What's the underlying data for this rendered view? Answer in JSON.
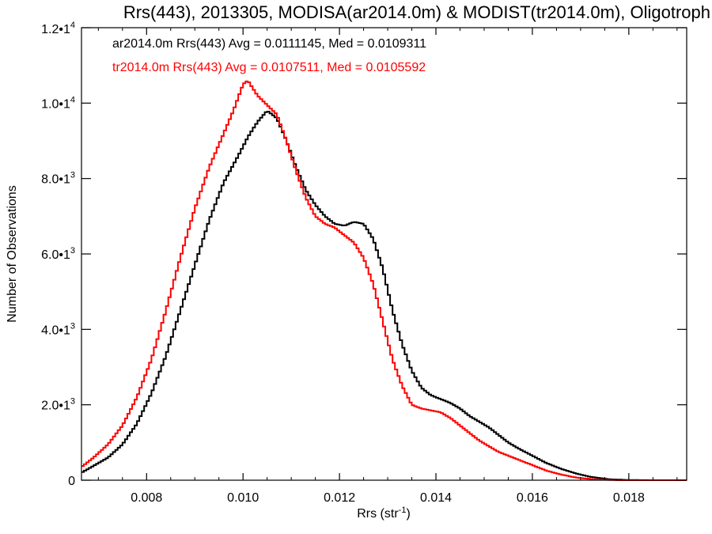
{
  "chart_data": {
    "type": "line",
    "title": "Rrs(443), 2013305, MODISA(ar2014.0m) & MODIST(tr2014.0m), Oligotroph",
    "xlabel_main": "Rrs (str",
    "xlabel_sup": "-1",
    "xlabel_close": ")",
    "ylabel": "Number of Observations",
    "xlim": [
      0.00665,
      0.0192
    ],
    "ylim": [
      0,
      12000
    ],
    "x_ticks": [
      {
        "value": 0.008,
        "label": "0.008"
      },
      {
        "value": 0.01,
        "label": "0.010"
      },
      {
        "value": 0.012,
        "label": "0.012"
      },
      {
        "value": 0.014,
        "label": "0.014"
      },
      {
        "value": 0.016,
        "label": "0.016"
      },
      {
        "value": 0.018,
        "label": "0.018"
      }
    ],
    "y_ticks": [
      {
        "value": 0,
        "mant": "0",
        "exp": ""
      },
      {
        "value": 2000,
        "mant": "2.0•1",
        "exp": "3"
      },
      {
        "value": 4000,
        "mant": "4.0•1",
        "exp": "3"
      },
      {
        "value": 6000,
        "mant": "6.0•1",
        "exp": "3"
      },
      {
        "value": 8000,
        "mant": "8.0•1",
        "exp": "3"
      },
      {
        "value": 10000,
        "mant": "1.0•1",
        "exp": "4"
      },
      {
        "value": 12000,
        "mant": "1.2•1",
        "exp": "4"
      }
    ],
    "grid": false,
    "legend_position": "top-left",
    "series": [
      {
        "name": "ar2014.0m Rrs(443) Avg = 0.0111145, Med = 0.0109311",
        "color": "#000000",
        "points": [
          [
            0.00665,
            200
          ],
          [
            0.0069,
            380
          ],
          [
            0.0072,
            600
          ],
          [
            0.0075,
            950
          ],
          [
            0.0078,
            1500
          ],
          [
            0.0081,
            2300
          ],
          [
            0.0084,
            3300
          ],
          [
            0.0087,
            4500
          ],
          [
            0.009,
            5700
          ],
          [
            0.0093,
            6900
          ],
          [
            0.0096,
            7900
          ],
          [
            0.0099,
            8600
          ],
          [
            0.0101,
            9100
          ],
          [
            0.0103,
            9500
          ],
          [
            0.0105,
            9800
          ],
          [
            0.0107,
            9600
          ],
          [
            0.0109,
            9000
          ],
          [
            0.0111,
            8300
          ],
          [
            0.0113,
            7700
          ],
          [
            0.0115,
            7300
          ],
          [
            0.0117,
            7000
          ],
          [
            0.0119,
            6800
          ],
          [
            0.0121,
            6750
          ],
          [
            0.0123,
            6850
          ],
          [
            0.0125,
            6800
          ],
          [
            0.0127,
            6400
          ],
          [
            0.0129,
            5600
          ],
          [
            0.0131,
            4500
          ],
          [
            0.0133,
            3600
          ],
          [
            0.0135,
            2900
          ],
          [
            0.0137,
            2450
          ],
          [
            0.0139,
            2250
          ],
          [
            0.0141,
            2150
          ],
          [
            0.0143,
            2050
          ],
          [
            0.0145,
            1900
          ],
          [
            0.0147,
            1700
          ],
          [
            0.0149,
            1550
          ],
          [
            0.0151,
            1400
          ],
          [
            0.0153,
            1200
          ],
          [
            0.0155,
            1000
          ],
          [
            0.0157,
            850
          ],
          [
            0.016,
            650
          ],
          [
            0.0163,
            450
          ],
          [
            0.0166,
            300
          ],
          [
            0.0169,
            180
          ],
          [
            0.0172,
            90
          ],
          [
            0.0176,
            25
          ],
          [
            0.018,
            5
          ],
          [
            0.0185,
            0
          ],
          [
            0.0192,
            0
          ]
        ]
      },
      {
        "name": "tr2014.0m Rrs(443) Avg = 0.0107511, Med = 0.0105592",
        "color": "#ff0000",
        "points": [
          [
            0.00665,
            350
          ],
          [
            0.0069,
            600
          ],
          [
            0.0072,
            950
          ],
          [
            0.0075,
            1450
          ],
          [
            0.0078,
            2200
          ],
          [
            0.0081,
            3200
          ],
          [
            0.0084,
            4500
          ],
          [
            0.0087,
            5900
          ],
          [
            0.009,
            7200
          ],
          [
            0.0093,
            8300
          ],
          [
            0.0096,
            9200
          ],
          [
            0.0098,
            9800
          ],
          [
            0.01,
            10500
          ],
          [
            0.0101,
            10600
          ],
          [
            0.0103,
            10200
          ],
          [
            0.0105,
            9950
          ],
          [
            0.0107,
            9700
          ],
          [
            0.0109,
            9000
          ],
          [
            0.0111,
            8200
          ],
          [
            0.0113,
            7500
          ],
          [
            0.0115,
            7000
          ],
          [
            0.0117,
            6800
          ],
          [
            0.0119,
            6700
          ],
          [
            0.0121,
            6500
          ],
          [
            0.0123,
            6300
          ],
          [
            0.0125,
            5900
          ],
          [
            0.0127,
            5200
          ],
          [
            0.0129,
            4200
          ],
          [
            0.0131,
            3200
          ],
          [
            0.0133,
            2500
          ],
          [
            0.0135,
            2000
          ],
          [
            0.0137,
            1900
          ],
          [
            0.0139,
            1850
          ],
          [
            0.0141,
            1800
          ],
          [
            0.0143,
            1650
          ],
          [
            0.0145,
            1450
          ],
          [
            0.0147,
            1250
          ],
          [
            0.0149,
            1050
          ],
          [
            0.0151,
            900
          ],
          [
            0.0153,
            750
          ],
          [
            0.0155,
            650
          ],
          [
            0.0157,
            550
          ],
          [
            0.016,
            400
          ],
          [
            0.0163,
            250
          ],
          [
            0.0166,
            150
          ],
          [
            0.0169,
            70
          ],
          [
            0.0173,
            20
          ],
          [
            0.0178,
            0
          ],
          [
            0.0192,
            0
          ]
        ]
      }
    ]
  }
}
